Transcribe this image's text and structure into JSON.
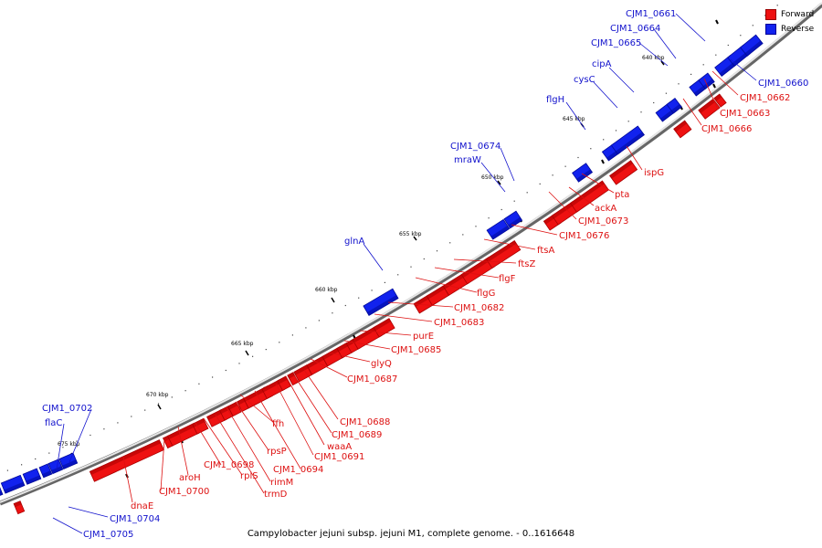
{
  "caption": "Campylobacter jejuni subsp. jejuni M1, complete genome. - 0..1616648",
  "legend": {
    "forward": {
      "label": "Forward",
      "color": "#ee1111"
    },
    "reverse": {
      "label": "Reverse",
      "color": "#1122ee"
    }
  },
  "colors": {
    "forward": "#ee1111",
    "forward_dark": "#aa0000",
    "reverse": "#1122ee",
    "reverse_dark": "#000a99",
    "forward_label": "#dd1111",
    "reverse_label": "#1111cc"
  },
  "ticks": [
    {
      "label": "640 kbp"
    },
    {
      "label": "645 kbp"
    },
    {
      "label": "650 kbp"
    },
    {
      "label": "655 kbp"
    },
    {
      "label": "660 kbp"
    },
    {
      "label": "665 kbp"
    },
    {
      "label": "670 kbp"
    },
    {
      "label": "675 kbp"
    }
  ],
  "gene_labels": [
    {
      "name": "CJM1_0661",
      "strand": "reverse"
    },
    {
      "name": "CJM1_0664",
      "strand": "reverse"
    },
    {
      "name": "CJM1_0665",
      "strand": "reverse"
    },
    {
      "name": "cipA",
      "strand": "reverse"
    },
    {
      "name": "cysC",
      "strand": "reverse"
    },
    {
      "name": "flgH",
      "strand": "reverse"
    },
    {
      "name": "CJM1_0674",
      "strand": "reverse"
    },
    {
      "name": "mraW",
      "strand": "reverse"
    },
    {
      "name": "glnA",
      "strand": "reverse"
    },
    {
      "name": "CJM1_0702",
      "strand": "reverse"
    },
    {
      "name": "flaC",
      "strand": "reverse"
    },
    {
      "name": "CJM1_0660",
      "strand": "reverse"
    },
    {
      "name": "CJM1_0662",
      "strand": "forward"
    },
    {
      "name": "CJM1_0663",
      "strand": "forward"
    },
    {
      "name": "CJM1_0666",
      "strand": "forward"
    },
    {
      "name": "ispG",
      "strand": "forward"
    },
    {
      "name": "pta",
      "strand": "forward"
    },
    {
      "name": "ackA",
      "strand": "forward"
    },
    {
      "name": "CJM1_0673",
      "strand": "forward"
    },
    {
      "name": "CJM1_0676",
      "strand": "forward"
    },
    {
      "name": "ftsA",
      "strand": "forward"
    },
    {
      "name": "ftsZ",
      "strand": "forward"
    },
    {
      "name": "flgF",
      "strand": "forward"
    },
    {
      "name": "flgG",
      "strand": "forward"
    },
    {
      "name": "CJM1_0682",
      "strand": "forward"
    },
    {
      "name": "CJM1_0683",
      "strand": "forward"
    },
    {
      "name": "purE",
      "strand": "forward"
    },
    {
      "name": "CJM1_0685",
      "strand": "forward"
    },
    {
      "name": "glyQ",
      "strand": "forward"
    },
    {
      "name": "CJM1_0687",
      "strand": "forward"
    },
    {
      "name": "CJM1_0688",
      "strand": "forward"
    },
    {
      "name": "CJM1_0689",
      "strand": "forward"
    },
    {
      "name": "waaA",
      "strand": "forward"
    },
    {
      "name": "CJM1_0691",
      "strand": "forward"
    },
    {
      "name": "CJM1_0694",
      "strand": "forward"
    },
    {
      "name": "ffh",
      "strand": "forward"
    },
    {
      "name": "rpsP",
      "strand": "forward"
    },
    {
      "name": "rimM",
      "strand": "forward"
    },
    {
      "name": "trmD",
      "strand": "forward"
    },
    {
      "name": "rplS",
      "strand": "forward"
    },
    {
      "name": "CJM1_0698",
      "strand": "forward"
    },
    {
      "name": "aroH",
      "strand": "forward"
    },
    {
      "name": "CJM1_0700",
      "strand": "forward"
    },
    {
      "name": "dnaE",
      "strand": "forward"
    },
    {
      "name": "CJM1_0704",
      "strand": "reverse"
    },
    {
      "name": "CJM1_0705",
      "strand": "reverse"
    }
  ]
}
